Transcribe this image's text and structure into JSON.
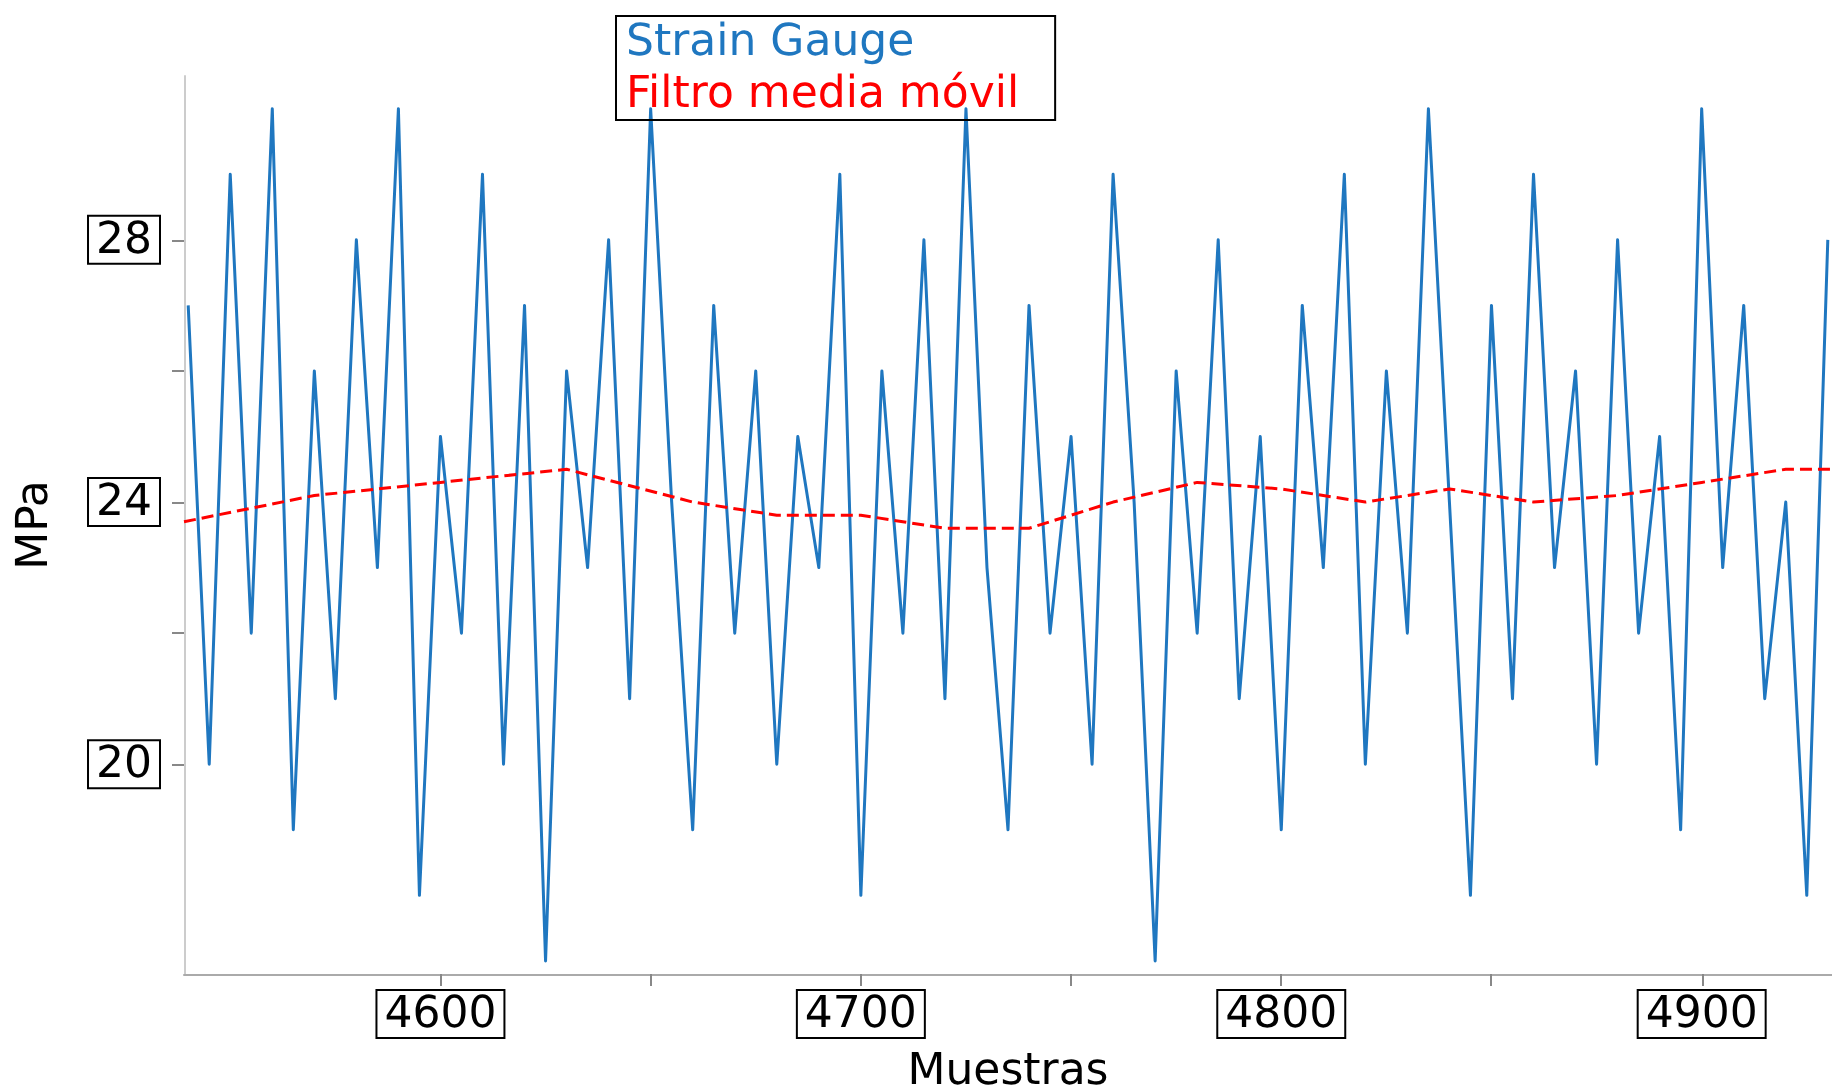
{
  "chart_data": {
    "type": "line",
    "xlabel": "Muestras",
    "ylabel": "MPa",
    "xlim": [
      4539,
      4931
    ],
    "ylim": [
      16.8,
      30.5
    ],
    "xticks": [
      4600,
      {
        "value": 4650,
        "label": null
      },
      4700,
      {
        "value": 4750,
        "label": null
      },
      4800,
      {
        "value": 4850,
        "label": null
      },
      4900
    ],
    "yticks": [
      20,
      {
        "value": 22,
        "label": null
      },
      24,
      {
        "value": 26,
        "label": null
      },
      28
    ],
    "grid": false,
    "legend": "top",
    "marker": "none",
    "series": [
      {
        "name": "Strain Gauge",
        "color": "#1f77c0",
        "line_style": "solid",
        "x": [
          4540,
          4545,
          4550,
          4555,
          4560,
          4565,
          4570,
          4575,
          4580,
          4585,
          4590,
          4595,
          4600,
          4605,
          4610,
          4615,
          4620,
          4625,
          4630,
          4635,
          4640,
          4645,
          4650,
          4655,
          4660,
          4665,
          4670,
          4675,
          4680,
          4685,
          4690,
          4695,
          4700,
          4705,
          4710,
          4715,
          4720,
          4725,
          4730,
          4735,
          4740,
          4745,
          4750,
          4755,
          4760,
          4765,
          4770,
          4775,
          4780,
          4785,
          4790,
          4795,
          4800,
          4805,
          4810,
          4815,
          4820,
          4825,
          4830,
          4835,
          4840,
          4845,
          4850,
          4855,
          4860,
          4865,
          4870,
          4875,
          4880,
          4885,
          4890,
          4895,
          4900,
          4905,
          4910,
          4915,
          4920,
          4925,
          4930
        ],
        "values": [
          27,
          20,
          29,
          22,
          30,
          19,
          26,
          21,
          28,
          23,
          30,
          18,
          25,
          22,
          29,
          20,
          27,
          17,
          26,
          23,
          28,
          21,
          30,
          24,
          19,
          27,
          22,
          26,
          20,
          25,
          23,
          29,
          18,
          26,
          22,
          28,
          21,
          30,
          23,
          19,
          27,
          22,
          25,
          20,
          29,
          24,
          17,
          26,
          22,
          28,
          21,
          25,
          19,
          27,
          23,
          29,
          20,
          26,
          22,
          30,
          24,
          18,
          27,
          21,
          29,
          23,
          26,
          20,
          28,
          22,
          25,
          19,
          30,
          23,
          27,
          21,
          24,
          18,
          28
        ]
      },
      {
        "name": "Filtro media móvil",
        "color": "#ff0000",
        "line_style": "dashed",
        "x": [
          4539,
          4570,
          4600,
          4630,
          4660,
          4680,
          4700,
          4720,
          4740,
          4760,
          4780,
          4800,
          4820,
          4840,
          4860,
          4880,
          4900,
          4920,
          4931
        ],
        "values": [
          23.7,
          24.1,
          24.3,
          24.5,
          24.0,
          23.8,
          23.8,
          23.6,
          23.6,
          24.0,
          24.3,
          24.2,
          24.0,
          24.2,
          24.0,
          24.1,
          24.3,
          24.5,
          24.5
        ]
      }
    ]
  }
}
